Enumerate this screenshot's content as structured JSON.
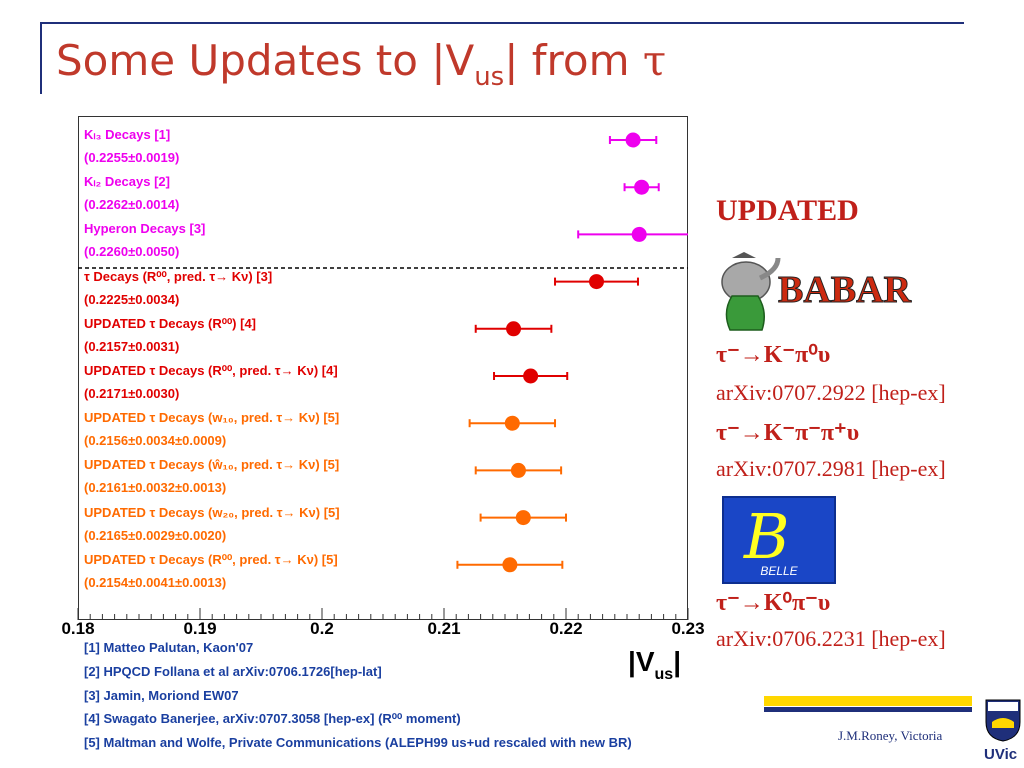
{
  "title": {
    "pre": "Some Updates to |V",
    "sub": "us",
    "post": "| from ",
    "tau": "τ"
  },
  "chart_data": {
    "type": "scatter",
    "xlabel": "|V",
    "xlabel_sub": "us",
    "xlabel_post": "|",
    "xlim": [
      0.18,
      0.23
    ],
    "xticks": [
      "0.18",
      "0.19",
      "0.2",
      "0.21",
      "0.22",
      "0.23"
    ],
    "grid": false,
    "separator_after_row": 3,
    "rows": [
      {
        "label": "Kₗ₃ Decays [1]",
        "value_text": "(0.2255±0.0019)",
        "value": 0.2255,
        "err": 0.0019,
        "color": "#ee00ee"
      },
      {
        "label": "Kₗ₂ Decays [2]",
        "value_text": "(0.2262±0.0014)",
        "value": 0.2262,
        "err": 0.0014,
        "color": "#ee00ee"
      },
      {
        "label": "Hyperon Decays [3]",
        "value_text": "(0.2260±0.0050)",
        "value": 0.226,
        "err": 0.005,
        "color": "#ee00ee"
      },
      {
        "label": "τ Decays (R⁰⁰, pred. τ→ Kν) [3]",
        "value_text": "(0.2225±0.0034)",
        "value": 0.2225,
        "err": 0.0034,
        "color": "#e00000"
      },
      {
        "label": "UPDATED τ Decays (R⁰⁰) [4]",
        "value_text": "(0.2157±0.0031)",
        "value": 0.2157,
        "err": 0.0031,
        "color": "#e00000"
      },
      {
        "label": "UPDATED τ Decays (R⁰⁰, pred. τ→ Kν) [4]",
        "value_text": "(0.2171±0.0030)",
        "value": 0.2171,
        "err": 0.003,
        "color": "#e00000"
      },
      {
        "label": "UPDATED τ Decays (w₁₀, pred. τ→ Kν) [5]",
        "value_text": "(0.2156±0.0034±0.0009)",
        "value": 0.2156,
        "err": 0.0035,
        "color": "#ff6a00"
      },
      {
        "label": "UPDATED τ Decays (ŵ₁₀, pred. τ→ Kν) [5]",
        "value_text": "(0.2161±0.0032±0.0013)",
        "value": 0.2161,
        "err": 0.0035,
        "color": "#ff6a00"
      },
      {
        "label": "UPDATED τ Decays (w₂₀, pred. τ→ Kν) [5]",
        "value_text": "(0.2165±0.0029±0.0020)",
        "value": 0.2165,
        "err": 0.0035,
        "color": "#ff6a00"
      },
      {
        "label": "UPDATED τ Decays (R⁰⁰, pred. τ→ Kν) [5]",
        "value_text": "(0.2154±0.0041±0.0013)",
        "value": 0.2154,
        "err": 0.0043,
        "color": "#ff6a00"
      }
    ]
  },
  "references": [
    "[1] Matteo Palutan, Kaon'07",
    "[2] HPQCD Follana et al arXiv:0706.1726[hep-lat]",
    "[3] Jamin, Moriond EW07",
    "[4] Swagato Banerjee, arXiv:0707.3058 [hep-ex] (R⁰⁰ moment)",
    "[5] Maltman and Wolfe, Private Communications (ALEPH99 us+ud rescaled with new BR)"
  ],
  "side": {
    "updated": "UPDATED",
    "babar": "BABAR",
    "belle": "BELLE",
    "entries": [
      {
        "process": "τ⁻→K⁻π⁰υ",
        "arxiv": "arXiv:0707.2922 [hep-ex]"
      },
      {
        "process": "τ⁻→K⁻π⁻π⁺υ",
        "arxiv": "arXiv:0707.2981 [hep-ex]"
      },
      {
        "process": "τ⁻→K⁰π⁻υ",
        "arxiv": "arXiv:0706.2231 [hep-ex]"
      }
    ]
  },
  "footer": {
    "author": "J.M.Roney, Victoria",
    "uvic": "UVic"
  },
  "colors": {
    "title": "#c0392b",
    "accent_blue": "#1f2f7a",
    "magenta": "#ee00ee",
    "red": "#e00000",
    "orange": "#ff6a00",
    "refs": "#1a3fa0",
    "gold": "#ffd700"
  }
}
